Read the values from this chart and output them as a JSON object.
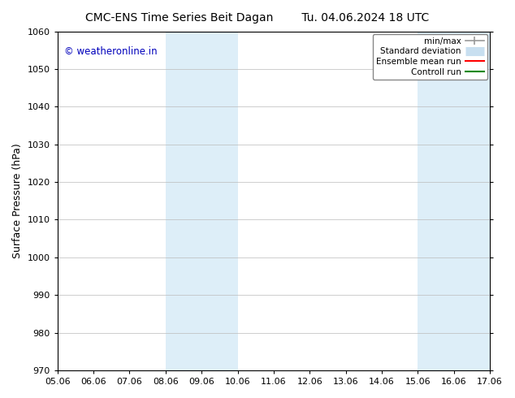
{
  "title_left": "CMC-ENS Time Series Beit Dagan",
  "title_right": "Tu. 04.06.2024 18 UTC",
  "ylabel": "Surface Pressure (hPa)",
  "ylim": [
    970,
    1060
  ],
  "yticks": [
    970,
    980,
    990,
    1000,
    1010,
    1020,
    1030,
    1040,
    1050,
    1060
  ],
  "xtick_labels": [
    "05.06",
    "06.06",
    "07.06",
    "08.06",
    "09.06",
    "10.06",
    "11.06",
    "12.06",
    "13.06",
    "14.06",
    "15.06",
    "16.06",
    "17.06"
  ],
  "xtick_positions": [
    0,
    1,
    2,
    3,
    4,
    5,
    6,
    7,
    8,
    9,
    10,
    11,
    12
  ],
  "shaded_regions": [
    {
      "x_start": 3,
      "x_end": 5,
      "color": "#ddeef8"
    },
    {
      "x_start": 10,
      "x_end": 12,
      "color": "#ddeef8"
    }
  ],
  "watermark_text": "© weatheronline.in",
  "watermark_color": "#0000bb",
  "watermark_fontsize": 8.5,
  "legend_entries": [
    {
      "label": "min/max",
      "color": "#999999",
      "lw": 1.2,
      "style": "solid",
      "type": "line_caps"
    },
    {
      "label": "Standard deviation",
      "color": "#c8dff0",
      "lw": 8,
      "style": "solid",
      "type": "thick_line"
    },
    {
      "label": "Ensemble mean run",
      "color": "#ff0000",
      "lw": 1.5,
      "style": "solid",
      "type": "line"
    },
    {
      "label": "Controll run",
      "color": "#008800",
      "lw": 1.5,
      "style": "solid",
      "type": "line"
    }
  ],
  "background_color": "#ffffff",
  "grid_color": "#bbbbbb",
  "figsize": [
    6.34,
    4.9
  ],
  "dpi": 100
}
